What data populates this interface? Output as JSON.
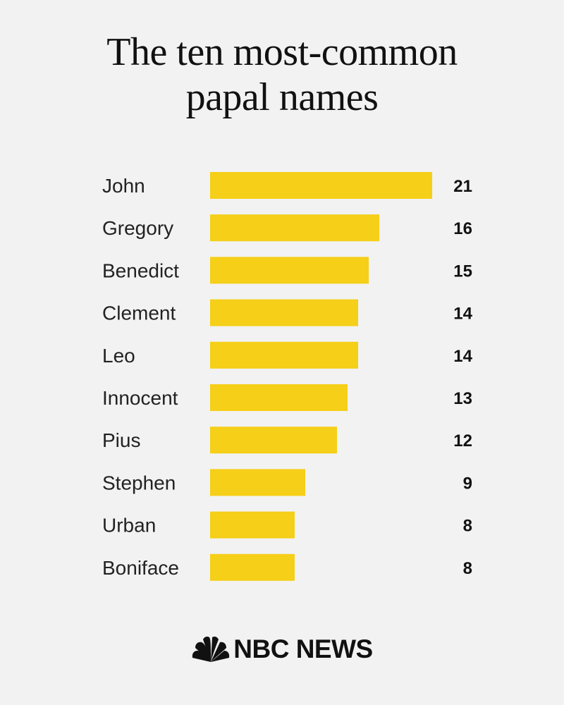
{
  "title_lines": [
    "The ten most-common",
    "papal names"
  ],
  "brand": {
    "name": "NBC NEWS",
    "bar_color": "#f5cf18",
    "icon": "peacock-icon"
  },
  "chart_data": {
    "type": "bar",
    "orientation": "horizontal",
    "title": "The ten most-common papal names",
    "categories": [
      "John",
      "Gregory",
      "Benedict",
      "Clement",
      "Leo",
      "Innocent",
      "Pius",
      "Stephen",
      "Urban",
      "Boniface"
    ],
    "values": [
      21,
      16,
      15,
      14,
      14,
      13,
      12,
      9,
      8,
      8
    ],
    "xlabel": "",
    "ylabel": "",
    "xlim": [
      0,
      21
    ],
    "grid": false,
    "legend": "none",
    "data_labels": true
  }
}
